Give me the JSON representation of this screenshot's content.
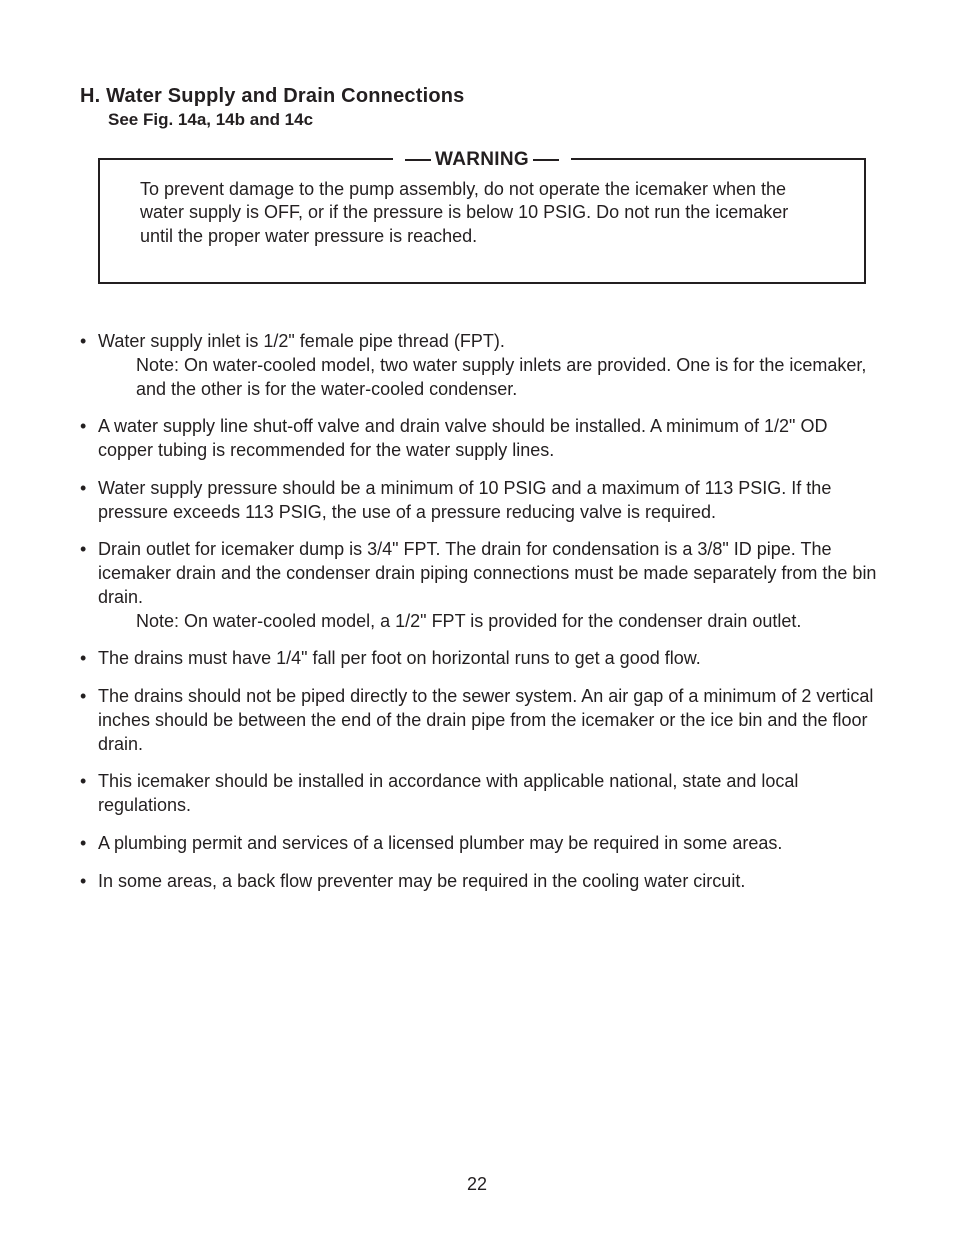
{
  "colors": {
    "text": "#231f20",
    "background": "#ffffff",
    "border": "#231f20"
  },
  "typography": {
    "heading_fontsize": 20,
    "subheading_fontsize": 17,
    "body_fontsize": 18,
    "warning_label_fontsize": 19,
    "font_family": "Arial, Helvetica, sans-serif"
  },
  "heading": {
    "prefix": "H.",
    "title": "Water Supply and Drain Connections",
    "subtitle": "See Fig. 14a, 14b and 14c"
  },
  "warning": {
    "label": "WARNING",
    "body": "To prevent damage to the pump assembly, do not operate the icemaker when the water supply is OFF, or if the pressure is below 10 PSIG. Do not run the icemaker until the proper water pressure is reached."
  },
  "bullets": [
    {
      "text": "Water supply inlet is 1/2\" female pipe thread (FPT).",
      "note_label": "Note:",
      "note": "On water-cooled model, two water supply inlets are provided. One is for the icemaker, and the other is for the water-cooled condenser."
    },
    {
      "text": "A water supply line shut-off valve and drain valve should be installed. A minimum of 1/2\" OD copper tubing is recommended for the water supply lines."
    },
    {
      "text": "Water supply pressure should be a minimum of 10 PSIG and a maximum of 113 PSIG. If the pressure exceeds 113 PSIG, the use of a pressure reducing valve is required."
    },
    {
      "text": "Drain outlet for icemaker dump is 3/4\" FPT. The drain for condensation is a 3/8\" ID pipe. The icemaker drain and the condenser drain piping connections must be made separately from the bin drain.",
      "note_label": "Note:",
      "note": "On water-cooled model, a 1/2\" FPT is provided for the condenser drain outlet."
    },
    {
      "text": "The drains must have 1/4\" fall per foot on horizontal runs to get a good flow."
    },
    {
      "text": "The drains should not be piped directly to the sewer system. An air gap of a minimum of 2 vertical inches should be between the end of the drain pipe from the icemaker or the ice bin and the floor drain."
    },
    {
      "text": "This icemaker should be installed in accordance with applicable national, state and local regulations."
    },
    {
      "text": "A plumbing permit and services of a licensed plumber may be required in some areas."
    },
    {
      "text": "In some areas, a back flow preventer may be required in the cooling water circuit."
    }
  ],
  "page_number": "22"
}
